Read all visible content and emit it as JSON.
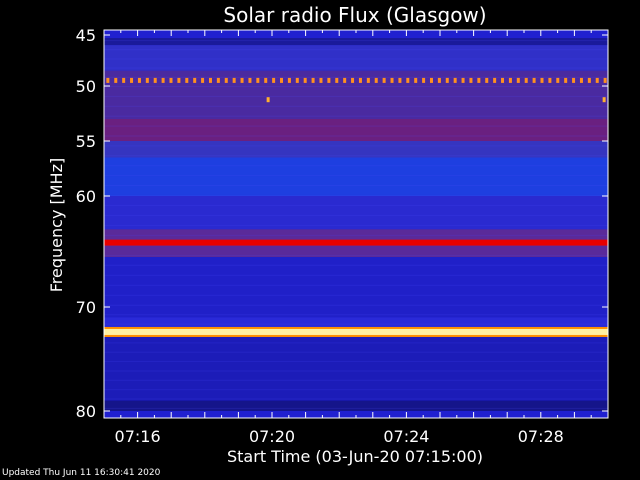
{
  "chart_data": {
    "type": "heatmap",
    "title": "Solar radio Flux (Glasgow)",
    "xlabel": "Start Time (03-Jun-20 07:15:00)",
    "ylabel": "Frequency [MHz]",
    "ylim": [
      45,
      80
    ],
    "y_axis_inverted": true,
    "xlim_minutes_after_07:00": [
      15.0,
      30.0
    ],
    "x_ticks": [
      "07:16",
      "07:20",
      "07:24",
      "07:28"
    ],
    "x_tick_minutes_after_07:00": [
      16,
      20,
      24,
      28
    ],
    "y_ticks": [
      45,
      50,
      55,
      60,
      70,
      80
    ],
    "colormap": "blue-red-yellow-white (low to high)",
    "background_color": "#2020d0",
    "bands": [
      {
        "freq_from": 45.3,
        "freq_to": 46.0,
        "intensity": "low",
        "color": "#1a1a9a"
      },
      {
        "freq_from": 46.0,
        "freq_to": 48.5,
        "intensity": "low",
        "color": "#3030c8"
      },
      {
        "freq_from": 48.5,
        "freq_to": 53.0,
        "intensity": "medium",
        "color": "#4a2aa0"
      },
      {
        "freq_from": 53.0,
        "freq_to": 55.0,
        "intensity": "medium",
        "color": "#6a2080"
      },
      {
        "freq_from": 55.0,
        "freq_to": 56.5,
        "intensity": "low",
        "color": "#3535c0"
      },
      {
        "freq_from": 56.5,
        "freq_to": 60.0,
        "intensity": "low",
        "color": "#1e3fe0"
      },
      {
        "freq_from": 60.0,
        "freq_to": 63.0,
        "intensity": "low",
        "color": "#2a2ad0"
      },
      {
        "freq_from": 63.0,
        "freq_to": 65.5,
        "intensity": "medium",
        "color": "#5a2a9a"
      },
      {
        "freq_from": 65.5,
        "freq_to": 71.0,
        "intensity": "low",
        "color": "#2020c8"
      },
      {
        "freq_from": 71.0,
        "freq_to": 72.5,
        "intensity": "low",
        "color": "#2a2ad8"
      },
      {
        "freq_from": 72.5,
        "freq_to": 79.0,
        "intensity": "low",
        "color": "#1c1cb8"
      },
      {
        "freq_from": 79.0,
        "freq_to": 80.0,
        "intensity": "low",
        "color": "#15158a"
      }
    ],
    "lines": [
      {
        "freq": 64.2,
        "intensity": "high",
        "color": "#e80000"
      },
      {
        "freq": 72.4,
        "intensity": "very high",
        "color": "#fff0a0"
      }
    ],
    "pulses": {
      "freq": 49.5,
      "color": "#ff9020",
      "start_minute": 15.1,
      "end_minute": 29.9,
      "count": 64
    },
    "spikes": [
      {
        "minute": 19.87,
        "freq": 51.2,
        "color": "#ffb030"
      },
      {
        "minute": 29.87,
        "freq": 51.2,
        "color": "#ffb030"
      }
    ]
  },
  "footer": {
    "updated": "Updated Thu Jun 11 16:30:41 2020"
  }
}
